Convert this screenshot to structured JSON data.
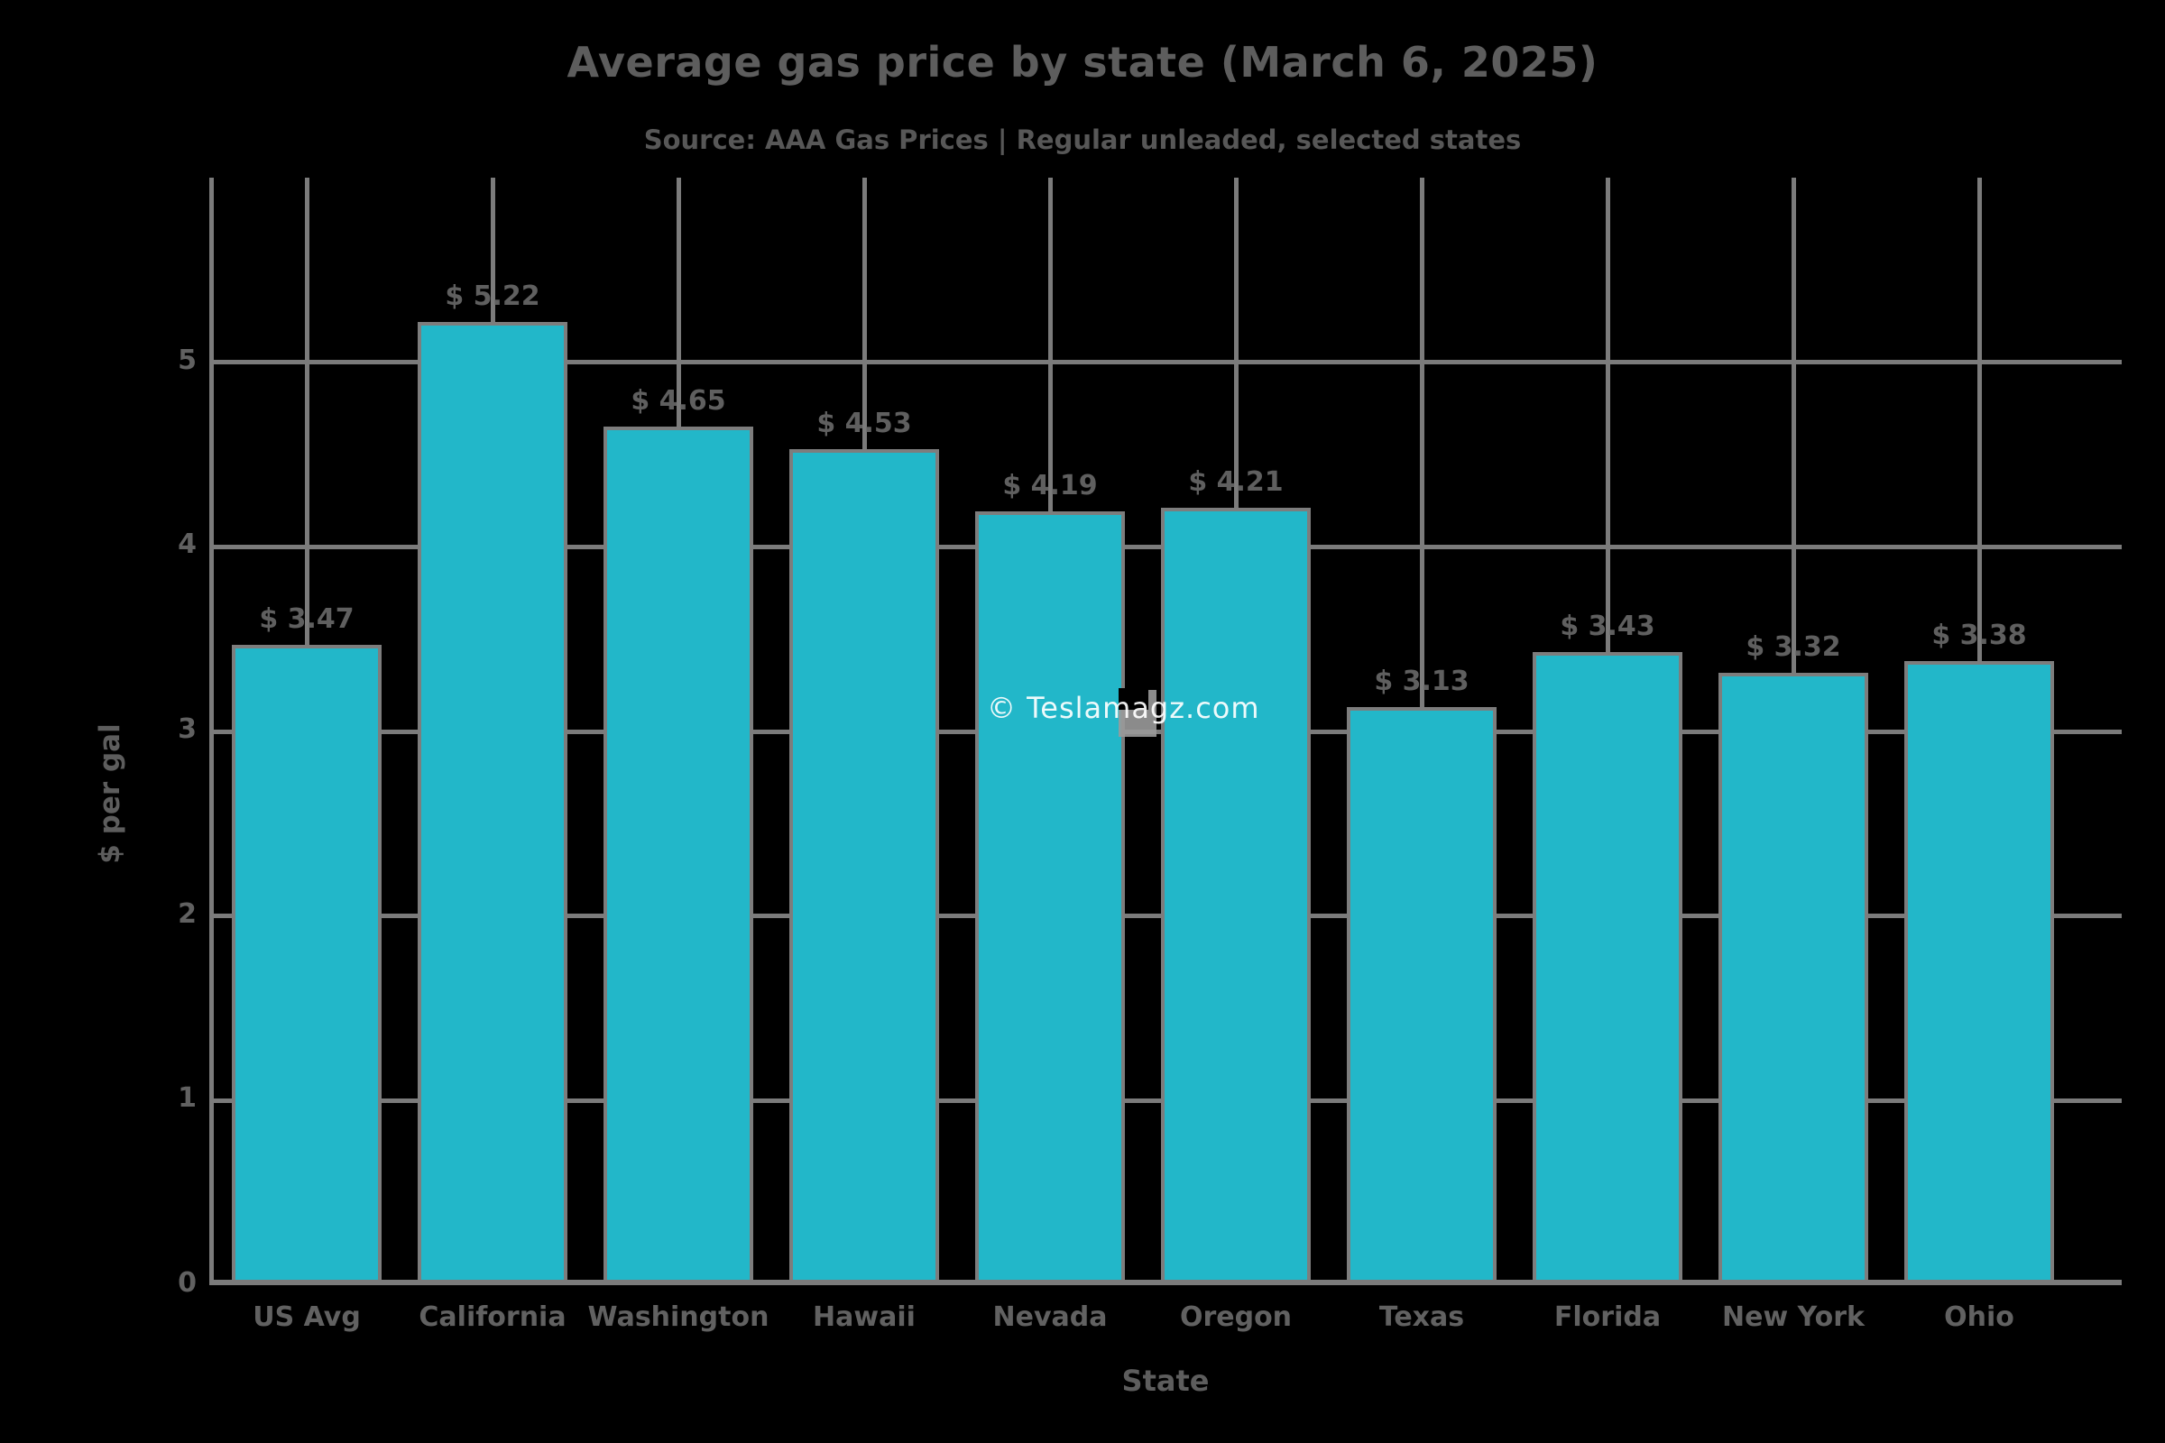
{
  "watermark": "© Teslamagz.com",
  "colors": {
    "background": "#000000",
    "bar": "#22b7c9",
    "bar_edge": "#7d7d7d",
    "grid": "#7b7b7b",
    "text": "#5d5d5d",
    "watermark_text": "#ffffff"
  },
  "chart_data": {
    "type": "bar",
    "title": "Average gas price by state (March 6, 2025)",
    "subtitle": "Source: AAA Gas Prices | Regular unleaded, selected states",
    "xlabel": "State",
    "ylabel": "$ per gal",
    "categories": [
      "US Avg",
      "California",
      "Washington",
      "Hawaii",
      "Nevada",
      "Oregon",
      "Texas",
      "Florida",
      "New York",
      "Ohio"
    ],
    "values": [
      3.47,
      5.22,
      4.65,
      4.53,
      4.19,
      4.21,
      3.13,
      3.43,
      3.32,
      3.38
    ],
    "labels": [
      "$ 3.47",
      "$ 5.22",
      "$ 4.65",
      "$ 4.53",
      "$ 4.19",
      "$ 4.21",
      "$ 3.13",
      "$ 3.43",
      "$ 3.32",
      "$ 3.38"
    ],
    "ylim": [
      0,
      6
    ],
    "yticks": [
      0,
      1,
      2,
      3,
      4,
      5
    ],
    "grid": "both",
    "legend": "none"
  }
}
